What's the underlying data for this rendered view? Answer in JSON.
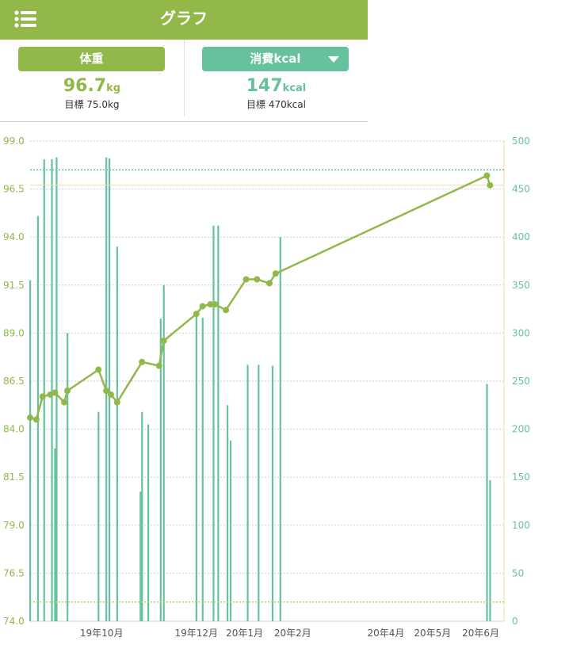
{
  "header": {
    "title": "グラフ",
    "menu_icon": "list-menu-icon"
  },
  "weight_panel": {
    "button_label": "体重",
    "value": "96.7",
    "unit": "kg",
    "goal": "目標 75.0kg"
  },
  "kcal_panel": {
    "button_label": "消費kcal",
    "value": "147",
    "unit": "kcal",
    "goal": "目標 470kcal",
    "dropdown_icon": "caret-down-icon"
  },
  "colors": {
    "weight": "#93b84a",
    "kcal": "#66c29c",
    "weight_goal": "#b8d06a",
    "kcal_goal": "#66c29c",
    "current_weight_line": "#f5d7a8",
    "grid": "#cfcfcf"
  },
  "chart_data": {
    "type": "line+bar",
    "x_axis": {
      "tick_labels": [
        "19年10月",
        "19年12月",
        "20年1月",
        "20年2月",
        "20年4月",
        "20年5月",
        "20年6月"
      ],
      "tick_dates": [
        "2019-10-01",
        "2019-12-01",
        "2020-01-01",
        "2020-02-01",
        "2020-04-01",
        "2020-05-01",
        "2020-06-01"
      ],
      "range": [
        "2019-08-16",
        "2020-06-16"
      ]
    },
    "y_left": {
      "label": "",
      "unit": "kg",
      "range": [
        74.0,
        99.0
      ],
      "tick_labels": [
        "99.0",
        "96.5",
        "94.0",
        "91.5",
        "89.0",
        "86.5",
        "84.0",
        "81.5",
        "79.0",
        "76.5",
        "74.0"
      ]
    },
    "y_right": {
      "label": "",
      "unit": "kcal",
      "range": [
        0,
        500
      ],
      "tick_labels": [
        "500",
        "450",
        "400",
        "350",
        "300",
        "250",
        "200",
        "150",
        "100",
        "50",
        "0"
      ]
    },
    "goal_lines": [
      {
        "axis": "left",
        "value": 75.0
      },
      {
        "axis": "right",
        "value": 470
      }
    ],
    "current_line": {
      "axis": "left",
      "value": 96.7
    },
    "series": [
      {
        "axis": "left",
        "type": "line",
        "points": [
          {
            "x": "2019-08-16",
            "y": 84.6
          },
          {
            "x": "2019-08-20",
            "y": 84.5
          },
          {
            "x": "2019-08-24",
            "y": 85.7
          },
          {
            "x": "2019-08-29",
            "y": 85.8
          },
          {
            "x": "2019-09-01",
            "y": 85.9
          },
          {
            "x": "2019-09-07",
            "y": 85.4
          },
          {
            "x": "2019-09-09",
            "y": 86.0
          },
          {
            "x": "2019-09-29",
            "y": 87.1
          },
          {
            "x": "2019-10-04",
            "y": 86.0
          },
          {
            "x": "2019-10-07",
            "y": 85.8
          },
          {
            "x": "2019-10-11",
            "y": 85.4
          },
          {
            "x": "2019-10-27",
            "y": 87.5
          },
          {
            "x": "2019-11-07",
            "y": 87.3
          },
          {
            "x": "2019-11-10",
            "y": 88.6
          },
          {
            "x": "2019-12-01",
            "y": 90.0
          },
          {
            "x": "2019-12-05",
            "y": 90.4
          },
          {
            "x": "2019-12-10",
            "y": 90.5
          },
          {
            "x": "2019-12-13",
            "y": 90.5
          },
          {
            "x": "2019-12-20",
            "y": 90.2
          },
          {
            "x": "2020-01-02",
            "y": 91.8
          },
          {
            "x": "2020-01-09",
            "y": 91.8
          },
          {
            "x": "2020-01-17",
            "y": 91.6
          },
          {
            "x": "2020-01-21",
            "y": 92.1
          },
          {
            "x": "2020-06-05",
            "y": 97.2
          },
          {
            "x": "2020-06-07",
            "y": 96.7
          }
        ]
      },
      {
        "axis": "right",
        "type": "bar",
        "points": [
          {
            "x": "2019-08-16",
            "y": 355
          },
          {
            "x": "2019-08-21",
            "y": 422
          },
          {
            "x": "2019-08-25",
            "y": 481
          },
          {
            "x": "2019-08-30",
            "y": 481
          },
          {
            "x": "2019-09-01",
            "y": 180
          },
          {
            "x": "2019-09-02",
            "y": 483
          },
          {
            "x": "2019-09-09",
            "y": 300
          },
          {
            "x": "2019-09-29",
            "y": 218
          },
          {
            "x": "2019-10-04",
            "y": 483
          },
          {
            "x": "2019-10-06",
            "y": 482
          },
          {
            "x": "2019-10-11",
            "y": 390
          },
          {
            "x": "2019-10-26",
            "y": 135
          },
          {
            "x": "2019-10-27",
            "y": 218
          },
          {
            "x": "2019-10-31",
            "y": 205
          },
          {
            "x": "2019-11-08",
            "y": 315
          },
          {
            "x": "2019-11-10",
            "y": 350
          },
          {
            "x": "2019-12-01",
            "y": 320
          },
          {
            "x": "2019-12-05",
            "y": 316
          },
          {
            "x": "2019-12-12",
            "y": 412
          },
          {
            "x": "2019-12-15",
            "y": 412
          },
          {
            "x": "2019-12-21",
            "y": 225
          },
          {
            "x": "2019-12-23",
            "y": 188
          },
          {
            "x": "2020-01-03",
            "y": 267
          },
          {
            "x": "2020-01-10",
            "y": 267
          },
          {
            "x": "2020-01-19",
            "y": 266
          },
          {
            "x": "2020-01-24",
            "y": 400
          },
          {
            "x": "2020-06-05",
            "y": 247
          },
          {
            "x": "2020-06-07",
            "y": 147
          }
        ]
      }
    ]
  }
}
